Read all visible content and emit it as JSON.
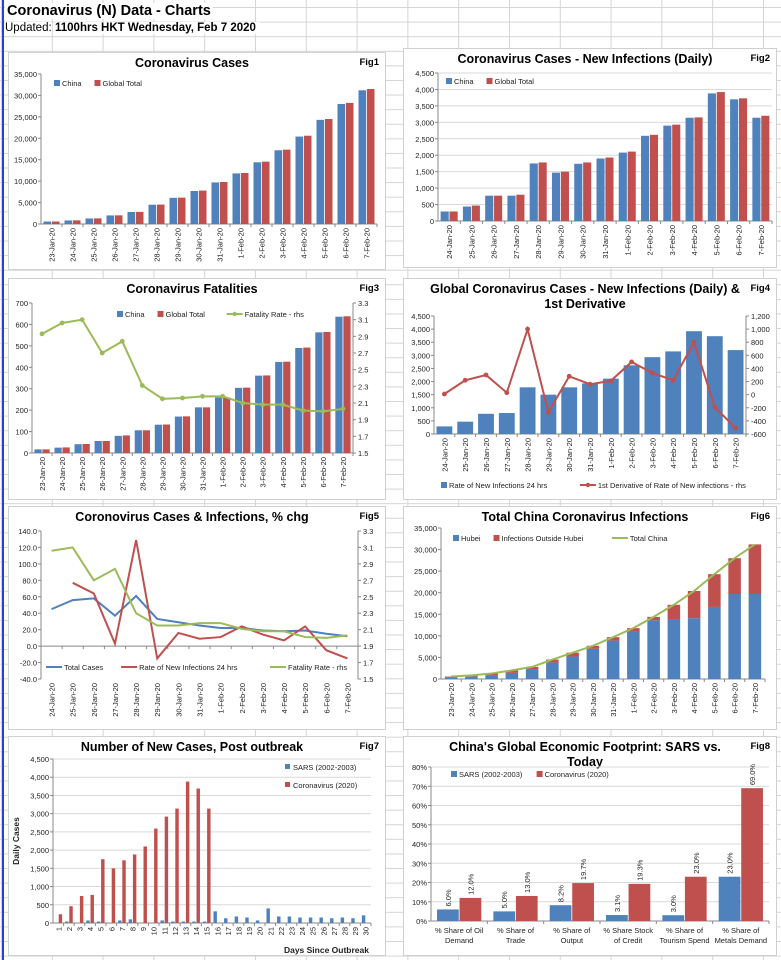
{
  "sheet": {
    "title": "Coronavirus (N) Data - Charts",
    "updated_label": "Updated:",
    "updated_value": "1100hrs HKT Wednesday, Feb 7 2020"
  },
  "colors": {
    "blue": "#4f81bd",
    "red": "#c0504d",
    "green": "#9bbb59"
  },
  "chart_data": [
    {
      "id": "fig1",
      "fig": "Fig1",
      "type": "bar",
      "title": "Coronavirus Cases",
      "categories": [
        "23-Jan-20",
        "24-Jan-20",
        "25-Jan-20",
        "26-Jan-20",
        "27-Jan-20",
        "28-Jan-20",
        "29-Jan-20",
        "30-Jan-20",
        "31-Jan-20",
        "1-Feb-20",
        "2-Feb-20",
        "3-Feb-20",
        "4-Feb-20",
        "5-Feb-20",
        "6-Feb-20",
        "7-Feb-20"
      ],
      "ylim": [
        0,
        35000
      ],
      "yticks": [
        0,
        5000,
        10000,
        15000,
        20000,
        25000,
        30000,
        35000
      ],
      "ytick_format": "comma",
      "grid": false,
      "legend": "top-left",
      "series": [
        {
          "name": "China",
          "kind": "bar",
          "color": "#4f81bd",
          "values": [
            570,
            830,
            1290,
            2000,
            2800,
            4500,
            6100,
            7700,
            9700,
            11800,
            14400,
            17200,
            20400,
            24300,
            28000,
            31200
          ]
        },
        {
          "name": "Global Total",
          "kind": "bar",
          "color": "#c0504d",
          "values": [
            580,
            850,
            1320,
            2020,
            2830,
            4530,
            6150,
            7800,
            9800,
            11900,
            14550,
            17350,
            20600,
            24500,
            28250,
            31500
          ]
        }
      ]
    },
    {
      "id": "fig2",
      "fig": "Fig2",
      "type": "bar",
      "title": "Coronavirus Cases - New Infections (Daily)",
      "categories": [
        "24-Jan-20",
        "25-Jan-20",
        "26-Jan-20",
        "27-Jan-20",
        "28-Jan-20",
        "29-Jan-20",
        "30-Jan-20",
        "31-Jan-20",
        "1-Feb-20",
        "2-Feb-20",
        "3-Feb-20",
        "4-Feb-20",
        "5-Feb-20",
        "6-Feb-20",
        "7-Feb-20"
      ],
      "ylim": [
        0,
        4500
      ],
      "yticks": [
        0,
        500,
        1000,
        1500,
        2000,
        2500,
        3000,
        3500,
        4000,
        4500
      ],
      "ytick_format": "comma",
      "grid": true,
      "legend": "top-left",
      "series": [
        {
          "name": "China",
          "kind": "bar",
          "color": "#4f81bd",
          "values": [
            290,
            440,
            770,
            770,
            1750,
            1470,
            1740,
            1900,
            2080,
            2590,
            2900,
            3140,
            3880,
            3700,
            3140
          ]
        },
        {
          "name": "Global Total",
          "kind": "bar",
          "color": "#c0504d",
          "values": [
            290,
            470,
            770,
            800,
            1780,
            1500,
            1780,
            1930,
            2110,
            2620,
            2930,
            3150,
            3920,
            3730,
            3200
          ]
        }
      ]
    },
    {
      "id": "fig3",
      "fig": "Fig3",
      "type": "bar",
      "title": "Coronavirus Fatalities",
      "categories": [
        "23-Jan-20",
        "24-Jan-20",
        "25-Jan-20",
        "26-Jan-20",
        "27-Jan-20",
        "28-Jan-20",
        "29-Jan-20",
        "30-Jan-20",
        "31-Jan-20",
        "1-Feb-20",
        "2-Feb-20",
        "3-Feb-20",
        "4-Feb-20",
        "5-Feb-20",
        "6-Feb-20",
        "7-Feb-20"
      ],
      "ylim": [
        0,
        700
      ],
      "yticks": [
        0,
        100,
        200,
        300,
        400,
        500,
        600,
        700
      ],
      "ytick_format": "comma",
      "y2lim": [
        1.5,
        3.3
      ],
      "y2ticks": [
        1.5,
        1.7,
        1.9,
        2.1,
        2.3,
        2.5,
        2.7,
        2.9,
        3.1,
        3.3
      ],
      "y2tick_format": "fixed1",
      "grid": false,
      "legend": "top",
      "series": [
        {
          "name": "China",
          "kind": "bar",
          "color": "#4f81bd",
          "values": [
            17,
            25,
            41,
            56,
            80,
            106,
            132,
            170,
            213,
            259,
            304,
            361,
            425,
            490,
            563,
            636
          ]
        },
        {
          "name": "Global Total",
          "kind": "bar",
          "color": "#c0504d",
          "values": [
            17,
            26,
            42,
            56,
            82,
            106,
            133,
            171,
            213,
            259,
            305,
            362,
            426,
            492,
            565,
            638
          ]
        },
        {
          "name": "Fatality Rate - rhs",
          "kind": "line",
          "axis": "right",
          "marker": true,
          "color": "#9bbb59",
          "values": [
            2.93,
            3.06,
            3.1,
            2.7,
            2.84,
            2.31,
            2.15,
            2.16,
            2.18,
            2.18,
            2.1,
            2.08,
            2.08,
            2.01,
            2.0,
            2.03
          ]
        }
      ]
    },
    {
      "id": "fig4",
      "fig": "Fig4",
      "type": "bar",
      "title": "Global Coronavirus Cases - New Infections (Daily) & 1st Derivative",
      "categories": [
        "24-Jan-20",
        "25-Jan-20",
        "26-Jan-20",
        "27-Jan-20",
        "28-Jan-20",
        "29-Jan-20",
        "30-Jan-20",
        "31-Jan-20",
        "1-Feb-20",
        "2-Feb-20",
        "3-Feb-20",
        "4-Feb-20",
        "5-Feb-20",
        "6-Feb-20",
        "7-Feb-20"
      ],
      "ylim": [
        0,
        4500
      ],
      "yticks": [
        0,
        500,
        1000,
        1500,
        2000,
        2500,
        3000,
        3500,
        4000,
        4500
      ],
      "ytick_format": "comma",
      "y2lim": [
        -600,
        1200
      ],
      "y2ticks": [
        -600,
        -400,
        -200,
        0,
        200,
        400,
        600,
        800,
        1000,
        1200
      ],
      "y2tick_format": "comma",
      "grid": false,
      "legend": "bottom",
      "series": [
        {
          "name": "Rate of New Infections 24 hrs",
          "kind": "bar",
          "color": "#4f81bd",
          "values": [
            290,
            470,
            770,
            800,
            1780,
            1500,
            1780,
            1930,
            2110,
            2620,
            2930,
            3150,
            3920,
            3730,
            3200
          ]
        },
        {
          "name": "1st Derivative of Rate of New infections - rhs",
          "kind": "line",
          "axis": "right",
          "marker": true,
          "color": "#c0504d",
          "values": [
            10,
            220,
            300,
            30,
            1000,
            -270,
            280,
            160,
            210,
            500,
            330,
            220,
            800,
            -190,
            -510
          ]
        }
      ]
    },
    {
      "id": "fig5",
      "fig": "Fig5",
      "type": "line",
      "title": "Coronovirus Cases & Infections, % chg",
      "categories": [
        "24-Jan-20",
        "25-Jan-20",
        "26-Jan-20",
        "27-Jan-20",
        "28-Jan-20",
        "29-Jan-20",
        "30-Jan-20",
        "31-Jan-20",
        "1-Feb-20",
        "2-Feb-20",
        "3-Feb-20",
        "4-Feb-20",
        "5-Feb-20",
        "6-Feb-20",
        "7-Feb-20"
      ],
      "ylim": [
        -40,
        140
      ],
      "yticks": [
        -40,
        -20,
        0,
        20,
        40,
        60,
        80,
        100,
        120,
        140
      ],
      "ytick_format": "fixed1",
      "y2lim": [
        1.5,
        3.3
      ],
      "y2ticks": [
        1.5,
        1.7,
        1.9,
        2.1,
        2.3,
        2.5,
        2.7,
        2.9,
        3.1,
        3.3
      ],
      "y2tick_format": "fixed1",
      "grid": false,
      "legend": "bottom-inside",
      "series": [
        {
          "name": "Total Cases",
          "kind": "line",
          "color": "#4f81bd",
          "values": [
            45,
            56,
            58,
            37,
            61,
            33,
            29,
            25,
            22,
            22,
            19,
            18,
            19,
            15,
            12
          ]
        },
        {
          "name": "Rate of New Infections 24 hrs",
          "kind": "line",
          "color": "#c0504d",
          "values": [
            null,
            77,
            64,
            3,
            129,
            -15,
            16,
            9,
            11,
            24,
            14,
            7,
            24,
            -5,
            -15
          ]
        },
        {
          "name": "Fatality Rate - rhs",
          "kind": "line",
          "axis": "right",
          "color": "#9bbb59",
          "values": [
            3.06,
            3.1,
            2.7,
            2.84,
            2.3,
            2.15,
            2.15,
            2.18,
            2.18,
            2.11,
            2.08,
            2.08,
            2.01,
            2.0,
            2.03
          ]
        }
      ]
    },
    {
      "id": "fig6",
      "fig": "Fig6",
      "type": "bar",
      "stacked": true,
      "title": "Total China Coronavirus Infections",
      "categories": [
        "23-Jan-20",
        "24-Jan-20",
        "25-Jan-20",
        "26-Jan-20",
        "27-Jan-20",
        "28-Jan-20",
        "29-Jan-20",
        "30-Jan-20",
        "31-Jan-20",
        "1-Feb-20",
        "2-Feb-20",
        "3-Feb-20",
        "4-Feb-20",
        "5-Feb-20",
        "6-Feb-20",
        "7-Feb-20"
      ],
      "ylim": [
        0,
        35000
      ],
      "yticks": [
        0,
        5000,
        10000,
        15000,
        20000,
        25000,
        30000,
        35000
      ],
      "ytick_format": "comma",
      "grid": false,
      "legend": "top-left",
      "series": [
        {
          "name": "Hubei",
          "kind": "bar",
          "color": "#4f81bd",
          "values": [
            440,
            550,
            760,
            1420,
            2300,
            3800,
            5200,
            7000,
            8900,
            11000,
            13600,
            13900,
            14100,
            16700,
            19700,
            19700
          ]
        },
        {
          "name": "Infections Outside Hubei",
          "kind": "bar",
          "color": "#c0504d",
          "values": [
            130,
            280,
            530,
            580,
            500,
            700,
            900,
            700,
            800,
            800,
            800,
            3300,
            6300,
            7600,
            8300,
            11500
          ]
        },
        {
          "name": "Total China",
          "kind": "line",
          "color": "#9bbb59",
          "values": [
            570,
            830,
            1290,
            2000,
            2800,
            4500,
            6100,
            7700,
            9700,
            11800,
            14400,
            17200,
            20400,
            24300,
            28000,
            31200
          ]
        }
      ]
    },
    {
      "id": "fig7",
      "fig": "Fig7",
      "type": "bar",
      "title": "Number of New Cases, Post outbreak",
      "xlabel": "Days Since Outbreak",
      "ylabel": "Daily Cases",
      "categories": [
        "1",
        "2",
        "3",
        "4",
        "5",
        "6",
        "7",
        "8",
        "9",
        "10",
        "11",
        "12",
        "13",
        "14",
        "15",
        "16",
        "17",
        "18",
        "19",
        "20",
        "21",
        "22",
        "23",
        "24",
        "25",
        "26",
        "27",
        "28",
        "29",
        "30"
      ],
      "ylim": [
        0,
        4500
      ],
      "yticks": [
        0,
        500,
        1000,
        1500,
        2000,
        2500,
        3000,
        3500,
        4000,
        4500
      ],
      "ytick_format": "comma",
      "grid": true,
      "legend": "right",
      "series": [
        {
          "name": "SARS (2002-2003)",
          "kind": "bar",
          "color": "#4f81bd",
          "values": [
            0,
            40,
            0,
            70,
            40,
            0,
            70,
            100,
            0,
            0,
            70,
            40,
            40,
            40,
            40,
            320,
            130,
            180,
            150,
            70,
            400,
            180,
            180,
            150,
            150,
            150,
            130,
            150,
            130,
            210
          ]
        },
        {
          "name": "Coronavirus (2020)",
          "kind": "bar",
          "color": "#c0504d",
          "values": [
            240,
            460,
            740,
            770,
            1750,
            1500,
            1720,
            1880,
            2100,
            2590,
            2920,
            3140,
            3880,
            3690,
            3140,
            null,
            null,
            null,
            null,
            null,
            null,
            null,
            null,
            null,
            null,
            null,
            null,
            null,
            null,
            null
          ]
        }
      ]
    },
    {
      "id": "fig8",
      "fig": "Fig8",
      "type": "bar",
      "title": "China's Global Economic Footprint: SARS vs. Today",
      "categories": [
        "% Share of Oil Demand",
        "% Share of Trade",
        "% Share of Output",
        "% Share Stock of Credit",
        "% Share of Tourism Spend",
        "% Share of Metals Demand"
      ],
      "ylim": [
        0,
        80
      ],
      "yticks": [
        0,
        10,
        20,
        30,
        40,
        50,
        60,
        70,
        80
      ],
      "ytick_format": "percent",
      "grid": true,
      "legend": "top-left",
      "data_labels": true,
      "series": [
        {
          "name": "SARS (2002-2003)",
          "kind": "bar",
          "color": "#4f81bd",
          "values": [
            6.0,
            5.0,
            8.2,
            3.1,
            3.0,
            23.0
          ]
        },
        {
          "name": "Coronavirus (2020)",
          "kind": "bar",
          "color": "#c0504d",
          "values": [
            12.0,
            13.0,
            19.7,
            19.3,
            23.0,
            69.0
          ]
        }
      ]
    }
  ]
}
